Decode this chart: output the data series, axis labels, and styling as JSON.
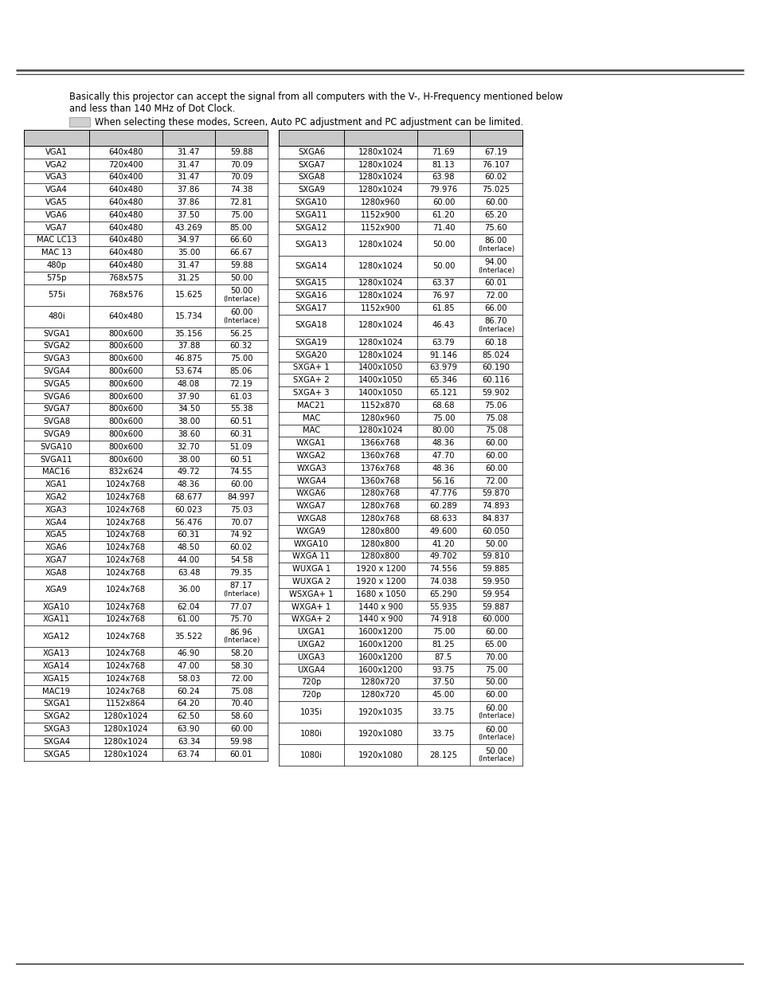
{
  "intro_line1": "Basically this projector can accept the signal from all computers with the V-, H-Frequency mentioned below",
  "intro_line2": "and less than 140 MHz of Dot Clock.",
  "legend_text": "When selecting these modes, Screen, Auto PC adjustment and PC adjustment can be limited.",
  "header_bg": "#c8c8c8",
  "font_size": 7.2,
  "left_table": [
    [
      "VGA1",
      "640x480",
      "31.47",
      "59.88"
    ],
    [
      "VGA2",
      "720x400",
      "31.47",
      "70.09"
    ],
    [
      "VGA3",
      "640x400",
      "31.47",
      "70.09"
    ],
    [
      "VGA4",
      "640x480",
      "37.86",
      "74.38"
    ],
    [
      "VGA5",
      "640x480",
      "37.86",
      "72.81"
    ],
    [
      "VGA6",
      "640x480",
      "37.50",
      "75.00"
    ],
    [
      "VGA7",
      "640x480",
      "43.269",
      "85.00"
    ],
    [
      "MAC LC13",
      "640x480",
      "34.97",
      "66.60"
    ],
    [
      "MAC 13",
      "640x480",
      "35.00",
      "66.67"
    ],
    [
      "480p",
      "640x480",
      "31.47",
      "59.88"
    ],
    [
      "575p",
      "768x575",
      "31.25",
      "50.00"
    ],
    [
      "575i",
      "768x576",
      "15.625",
      "50.00\n(Interlace)"
    ],
    [
      "480i",
      "640x480",
      "15.734",
      "60.00\n(Interlace)"
    ],
    [
      "SVGA1",
      "800x600",
      "35.156",
      "56.25"
    ],
    [
      "SVGA2",
      "800x600",
      "37.88",
      "60.32"
    ],
    [
      "SVGA3",
      "800x600",
      "46.875",
      "75.00"
    ],
    [
      "SVGA4",
      "800x600",
      "53.674",
      "85.06"
    ],
    [
      "SVGA5",
      "800x600",
      "48.08",
      "72.19"
    ],
    [
      "SVGA6",
      "800x600",
      "37.90",
      "61.03"
    ],
    [
      "SVGA7",
      "800x600",
      "34.50",
      "55.38"
    ],
    [
      "SVGA8",
      "800x600",
      "38.00",
      "60.51"
    ],
    [
      "SVGA9",
      "800x600",
      "38.60",
      "60.31"
    ],
    [
      "SVGA10",
      "800x600",
      "32.70",
      "51.09"
    ],
    [
      "SVGA11",
      "800x600",
      "38.00",
      "60.51"
    ],
    [
      "MAC16",
      "832x624",
      "49.72",
      "74.55"
    ],
    [
      "XGA1",
      "1024x768",
      "48.36",
      "60.00"
    ],
    [
      "XGA2",
      "1024x768",
      "68.677",
      "84.997"
    ],
    [
      "XGA3",
      "1024x768",
      "60.023",
      "75.03"
    ],
    [
      "XGA4",
      "1024x768",
      "56.476",
      "70.07"
    ],
    [
      "XGA5",
      "1024x768",
      "60.31",
      "74.92"
    ],
    [
      "XGA6",
      "1024x768",
      "48.50",
      "60.02"
    ],
    [
      "XGA7",
      "1024x768",
      "44.00",
      "54.58"
    ],
    [
      "XGA8",
      "1024x768",
      "63.48",
      "79.35"
    ],
    [
      "XGA9",
      "1024x768",
      "36.00",
      "87.17\n(Interlace)"
    ],
    [
      "XGA10",
      "1024x768",
      "62.04",
      "77.07"
    ],
    [
      "XGA11",
      "1024x768",
      "61.00",
      "75.70"
    ],
    [
      "XGA12",
      "1024x768",
      "35.522",
      "86.96\n(Interlace)"
    ],
    [
      "XGA13",
      "1024x768",
      "46.90",
      "58.20"
    ],
    [
      "XGA14",
      "1024x768",
      "47.00",
      "58.30"
    ],
    [
      "XGA15",
      "1024x768",
      "58.03",
      "72.00"
    ],
    [
      "MAC19",
      "1024x768",
      "60.24",
      "75.08"
    ],
    [
      "SXGA1",
      "1152x864",
      "64.20",
      "70.40"
    ],
    [
      "SXGA2",
      "1280x1024",
      "62.50",
      "58.60"
    ],
    [
      "SXGA3",
      "1280x1024",
      "63.90",
      "60.00"
    ],
    [
      "SXGA4",
      "1280x1024",
      "63.34",
      "59.98"
    ],
    [
      "SXGA5",
      "1280x1024",
      "63.74",
      "60.01"
    ]
  ],
  "right_table": [
    [
      "SXGA6",
      "1280x1024",
      "71.69",
      "67.19"
    ],
    [
      "SXGA7",
      "1280x1024",
      "81.13",
      "76.107"
    ],
    [
      "SXGA8",
      "1280x1024",
      "63.98",
      "60.02"
    ],
    [
      "SXGA9",
      "1280x1024",
      "79.976",
      "75.025"
    ],
    [
      "SXGA10",
      "1280x960",
      "60.00",
      "60.00"
    ],
    [
      "SXGA11",
      "1152x900",
      "61.20",
      "65.20"
    ],
    [
      "SXGA12",
      "1152x900",
      "71.40",
      "75.60"
    ],
    [
      "SXGA13",
      "1280x1024",
      "50.00",
      "86.00\n(Interlace)"
    ],
    [
      "SXGA14",
      "1280x1024",
      "50.00",
      "94.00\n(Interlace)"
    ],
    [
      "SXGA15",
      "1280x1024",
      "63.37",
      "60.01"
    ],
    [
      "SXGA16",
      "1280x1024",
      "76.97",
      "72.00"
    ],
    [
      "SXGA17",
      "1152x900",
      "61.85",
      "66.00"
    ],
    [
      "SXGA18",
      "1280x1024",
      "46.43",
      "86.70\n(Interlace)"
    ],
    [
      "SXGA19",
      "1280x1024",
      "63.79",
      "60.18"
    ],
    [
      "SXGA20",
      "1280x1024",
      "91.146",
      "85.024"
    ],
    [
      "SXGA+ 1",
      "1400x1050",
      "63.979",
      "60.190"
    ],
    [
      "SXGA+ 2",
      "1400x1050",
      "65.346",
      "60.116"
    ],
    [
      "SXGA+ 3",
      "1400x1050",
      "65.121",
      "59.902"
    ],
    [
      "MAC21",
      "1152x870",
      "68.68",
      "75.06"
    ],
    [
      "MAC",
      "1280x960",
      "75.00",
      "75.08"
    ],
    [
      "MAC",
      "1280x1024",
      "80.00",
      "75.08"
    ],
    [
      "WXGA1",
      "1366x768",
      "48.36",
      "60.00"
    ],
    [
      "WXGA2",
      "1360x768",
      "47.70",
      "60.00"
    ],
    [
      "WXGA3",
      "1376x768",
      "48.36",
      "60.00"
    ],
    [
      "WXGA4",
      "1360x768",
      "56.16",
      "72.00"
    ],
    [
      "WXGA6",
      "1280x768",
      "47.776",
      "59.870"
    ],
    [
      "WXGA7",
      "1280x768",
      "60.289",
      "74.893"
    ],
    [
      "WXGA8",
      "1280x768",
      "68.633",
      "84.837"
    ],
    [
      "WXGA9",
      "1280x800",
      "49.600",
      "60.050"
    ],
    [
      "WXGA10",
      "1280x800",
      "41.20",
      "50.00"
    ],
    [
      "WXGA 11",
      "1280x800",
      "49.702",
      "59.810"
    ],
    [
      "WUXGA 1",
      "1920 x 1200",
      "74.556",
      "59.885"
    ],
    [
      "WUXGA 2",
      "1920 x 1200",
      "74.038",
      "59.950"
    ],
    [
      "WSXGA+ 1",
      "1680 x 1050",
      "65.290",
      "59.954"
    ],
    [
      "WXGA+ 1",
      "1440 x 900",
      "55.935",
      "59.887"
    ],
    [
      "WXGA+ 2",
      "1440 x 900",
      "74.918",
      "60.000"
    ],
    [
      "UXGA1",
      "1600x1200",
      "75.00",
      "60.00"
    ],
    [
      "UXGA2",
      "1600x1200",
      "81.25",
      "65.00"
    ],
    [
      "UXGA3",
      "1600x1200",
      "87.5",
      "70.00"
    ],
    [
      "UXGA4",
      "1600x1200",
      "93.75",
      "75.00"
    ],
    [
      "720p",
      "1280x720",
      "37.50",
      "50.00"
    ],
    [
      "720p",
      "1280x720",
      "45.00",
      "60.00"
    ],
    [
      "1035i",
      "1920x1035",
      "33.75",
      "60.00\n(Interlace)"
    ],
    [
      "1080i",
      "1920x1080",
      "33.75",
      "60.00\n(Interlace)"
    ],
    [
      "1080i",
      "1920x1080",
      "28.125",
      "50.00\n(Interlace)"
    ]
  ]
}
